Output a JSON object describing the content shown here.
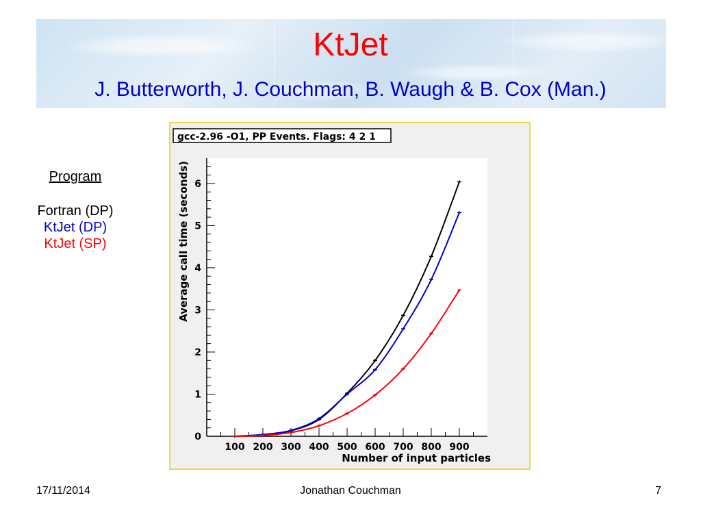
{
  "slide": {
    "title": "KtJet",
    "subtitle": "J. Butterworth, J. Couchman, B. Waugh & B. Cox (Man.)"
  },
  "legend": {
    "heading": "Program",
    "items": [
      {
        "label": "Fortran (DP)",
        "color": "#000000"
      },
      {
        "label": "KtJet (DP)",
        "color": "#0000cc"
      },
      {
        "label": "KtJet (SP)",
        "color": "#ff0000"
      }
    ]
  },
  "chart_data": {
    "type": "line",
    "title": "gcc-2.96 -O1, PP Events. Flags: 4 2 1",
    "xlabel": "Number of input particles",
    "ylabel": "Average call time (seconds)",
    "xlim": [
      0,
      1000
    ],
    "ylim": [
      0,
      6.6
    ],
    "xticks": [
      100,
      200,
      300,
      400,
      500,
      600,
      700,
      800,
      900
    ],
    "yticks": [
      0,
      1,
      2,
      3,
      4,
      5,
      6
    ],
    "grid": false,
    "series": [
      {
        "color": "#000000",
        "x": [
          100,
          200,
          300,
          400,
          500,
          600,
          700,
          800,
          900
        ],
        "y": [
          0.0,
          0.04,
          0.13,
          0.4,
          1.02,
          1.8,
          2.87,
          4.27,
          6.04
        ]
      },
      {
        "color": "#0000cc",
        "x": [
          100,
          200,
          300,
          400,
          500,
          600,
          700,
          800,
          900
        ],
        "y": [
          0.0,
          0.04,
          0.14,
          0.42,
          1.0,
          1.58,
          2.55,
          3.72,
          5.31
        ]
      },
      {
        "color": "#ff0000",
        "x": [
          100,
          200,
          300,
          400,
          500,
          600,
          700,
          800,
          900
        ],
        "y": [
          0.0,
          0.02,
          0.09,
          0.25,
          0.54,
          0.98,
          1.6,
          2.44,
          3.47
        ]
      }
    ]
  },
  "footer": {
    "date": "17/11/2014",
    "author": "Jonathan Couchman",
    "page": "7"
  }
}
